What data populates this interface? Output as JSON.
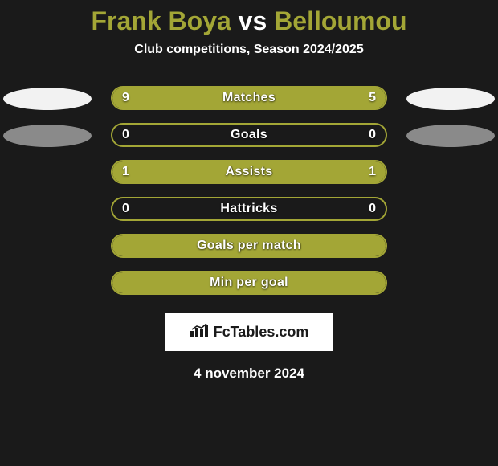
{
  "title": {
    "player1": "Frank Boya",
    "vs": "vs",
    "player2": "Belloumou"
  },
  "subtitle": "Club competitions, Season 2024/2025",
  "colors": {
    "olive": "#a3a636",
    "olive_dark": "#8a8d2e",
    "grey": "#8a8a8a",
    "white_ellipse": "#f2f2f2",
    "bg": "#1a1a1a",
    "text": "#ffffff"
  },
  "rows": [
    {
      "label": "Matches",
      "left_value": "9",
      "right_value": "5",
      "left_pct": 64,
      "right_pct": 36,
      "fill_color": "#a3a636",
      "border_color": "#a3a636",
      "show_left_ellipse": true,
      "left_ellipse_color": "#f2f2f2",
      "show_right_ellipse": true,
      "right_ellipse_color": "#f2f2f2"
    },
    {
      "label": "Goals",
      "left_value": "0",
      "right_value": "0",
      "left_pct": 0,
      "right_pct": 0,
      "fill_color": "#a3a636",
      "border_color": "#a3a636",
      "show_left_ellipse": true,
      "left_ellipse_color": "#8a8a8a",
      "show_right_ellipse": true,
      "right_ellipse_color": "#8a8a8a"
    },
    {
      "label": "Assists",
      "left_value": "1",
      "right_value": "1",
      "left_pct": 50,
      "right_pct": 50,
      "fill_color": "#a3a636",
      "border_color": "#a3a636",
      "show_left_ellipse": false,
      "show_right_ellipse": false
    },
    {
      "label": "Hattricks",
      "left_value": "0",
      "right_value": "0",
      "left_pct": 0,
      "right_pct": 0,
      "fill_color": "#a3a636",
      "border_color": "#a3a636",
      "show_left_ellipse": false,
      "show_right_ellipse": false
    },
    {
      "label": "Goals per match",
      "left_value": "",
      "right_value": "",
      "left_pct": 100,
      "right_pct": 0,
      "fill_color": "#a3a636",
      "border_color": "#a3a636",
      "full_fill": true,
      "show_left_ellipse": false,
      "show_right_ellipse": false
    },
    {
      "label": "Min per goal",
      "left_value": "",
      "right_value": "",
      "left_pct": 100,
      "right_pct": 0,
      "fill_color": "#a3a636",
      "border_color": "#a3a636",
      "full_fill": true,
      "show_left_ellipse": false,
      "show_right_ellipse": false
    }
  ],
  "logo_text": "FcTables.com",
  "date": "4 november 2024"
}
